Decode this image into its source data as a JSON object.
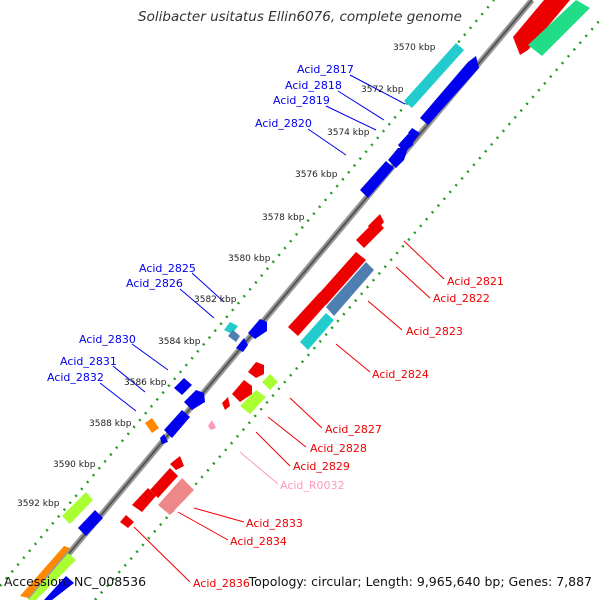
{
  "title": "Solibacter usitatus Ellin6076, complete genome",
  "footer": {
    "accession": "Accession: NC_008536",
    "summary": "Topology: circular; Length: 9,965,640 bp; Genes: 7,887"
  },
  "ticks": [
    "3570 kbp",
    "3572 kbp",
    "3574 kbp",
    "3576 kbp",
    "3578 kbp",
    "3580 kbp",
    "3582 kbp",
    "3584 kbp",
    "3586 kbp",
    "3588 kbp",
    "3590 kbp",
    "3592 kbp"
  ],
  "labels_blue": [
    "Acid_2817",
    "Acid_2818",
    "Acid_2819",
    "Acid_2820",
    "Acid_2825",
    "Acid_2826",
    "Acid_2830",
    "Acid_2831",
    "Acid_2832"
  ],
  "labels_red": [
    "Acid_2821",
    "Acid_2822",
    "Acid_2823",
    "Acid_2824",
    "Acid_2827",
    "Acid_2828",
    "Acid_2829",
    "Acid_R0032",
    "Acid_2833",
    "Acid_2834",
    "Acid_2836"
  ],
  "colors": {
    "blue": "#0000ee",
    "red": "#ee0000",
    "cyan": "#22cccc",
    "steel": "#4f7fb0",
    "lime": "#aaff33",
    "salmon": "#ee8888",
    "pink": "#ff99bb",
    "orange": "#ff8800",
    "green": "#22dd88"
  }
}
